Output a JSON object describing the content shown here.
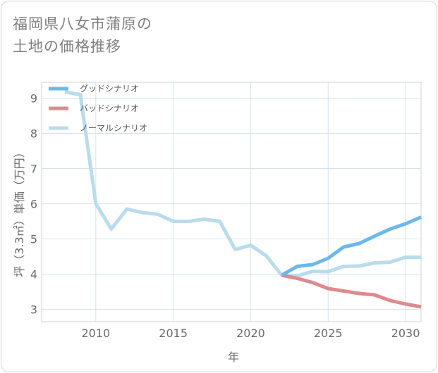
{
  "title": {
    "line1": "福岡県八女市蒲原の",
    "line2": "土地の価格推移"
  },
  "chart_data": {
    "type": "line",
    "xlabel": "年",
    "ylabel": "坪（3.3㎡）単価（万円）",
    "xlim": [
      2006.5,
      2031
    ],
    "ylim": [
      2.65,
      9.45
    ],
    "x_ticks": [
      2010,
      2015,
      2020,
      2025,
      2030
    ],
    "y_ticks": [
      3,
      4,
      5,
      6,
      7,
      8,
      9
    ],
    "grid": true,
    "legend_position": "top-left",
    "series": [
      {
        "name": "グッドシナリオ",
        "color": "#6cb8ec",
        "x": [
          2022,
          2023,
          2024,
          2025,
          2026,
          2027,
          2028,
          2029,
          2030,
          2031
        ],
        "values": [
          3.97,
          4.22,
          4.27,
          4.45,
          4.77,
          4.87,
          5.08,
          5.28,
          5.43,
          5.62
        ]
      },
      {
        "name": "バッドシナリオ",
        "color": "#dc8a90",
        "x": [
          2022,
          2023,
          2024,
          2025,
          2026,
          2027,
          2028,
          2029,
          2030,
          2031
        ],
        "values": [
          3.97,
          3.88,
          3.76,
          3.59,
          3.52,
          3.45,
          3.41,
          3.25,
          3.15,
          3.07
        ]
      },
      {
        "name": "ノーマルシナリオ",
        "color": "#b9dcec",
        "x": [
          2008,
          2009,
          2010,
          2011,
          2012,
          2013,
          2014,
          2015,
          2016,
          2017,
          2018,
          2019,
          2020,
          2021,
          2022,
          2023,
          2024,
          2025,
          2026,
          2027,
          2028,
          2029,
          2030,
          2031
        ],
        "values": [
          9.18,
          9.1,
          6.0,
          5.28,
          5.85,
          5.75,
          5.7,
          5.5,
          5.5,
          5.56,
          5.5,
          4.7,
          4.82,
          4.52,
          3.97,
          3.95,
          4.08,
          4.07,
          4.22,
          4.23,
          4.32,
          4.34,
          4.48,
          4.48
        ]
      }
    ]
  }
}
